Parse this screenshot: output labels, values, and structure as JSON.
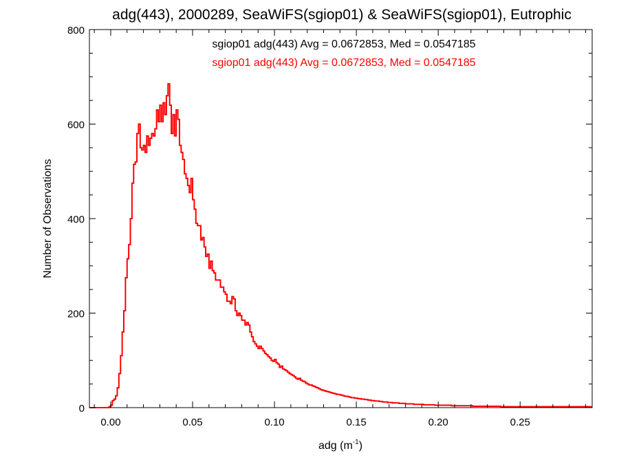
{
  "chart_data": {
    "type": "histogram",
    "title": "adg(443), 2000289, SeaWiFS(sgiop01) & SeaWiFS(sgiop01), Eutrophic",
    "xlabel": "adg (m",
    "xlabel_sup": "-1",
    "xlabel_suffix": ")",
    "ylabel": "Number of Observations",
    "xlim": [
      -0.013,
      0.294
    ],
    "ylim": [
      0,
      800
    ],
    "xticks": [
      0.0,
      0.05,
      0.1,
      0.15,
      0.2,
      0.25
    ],
    "xtick_labels": [
      "0.00",
      "0.05",
      "0.10",
      "0.15",
      "0.20",
      "0.25"
    ],
    "yticks": [
      0,
      200,
      400,
      600,
      800
    ],
    "ytick_labels": [
      "0",
      "200",
      "400",
      "600",
      "800"
    ],
    "grid": false,
    "annotations": [
      {
        "text": "sgiop01 adg(443) Avg = 0.0672853, Med = 0.0547185",
        "color": "#000000"
      },
      {
        "text": "sgiop01 adg(443) Avg = 0.0672853, Med = 0.0547185",
        "color": "#ff0000"
      }
    ],
    "series": [
      {
        "color": "#ff0000",
        "bin_width": 0.001,
        "bin_start": -0.013,
        "values": [
          0,
          0,
          0,
          0,
          0,
          0,
          0,
          0,
          0,
          0,
          0,
          0,
          2,
          5,
          15,
          18,
          25,
          42,
          72,
          110,
          160,
          205,
          275,
          315,
          345,
          400,
          475,
          515,
          520,
          580,
          600,
          550,
          545,
          555,
          540,
          575,
          555,
          570,
          580,
          575,
          590,
          630,
          605,
          640,
          605,
          645,
          620,
          660,
          685,
          640,
          580,
          620,
          575,
          630,
          610,
          555,
          540,
          525,
          495,
          485,
          470,
          455,
          485,
          440,
          420,
          390,
          385,
          385,
          355,
          360,
          340,
          320,
          325,
          295,
          310,
          290,
          285,
          270,
          270,
          270,
          255,
          255,
          245,
          240,
          225,
          225,
          220,
          235,
          230,
          205,
          195,
          200,
          195,
          185,
          185,
          175,
          180,
          175,
          160,
          150,
          140,
          135,
          130,
          125,
          130,
          125,
          120,
          115,
          112,
          108,
          105,
          100,
          98,
          102,
          95,
          92,
          85,
          88,
          82,
          80,
          78,
          75,
          72,
          70,
          68,
          65,
          62,
          60,
          62,
          58,
          56,
          55,
          52,
          50,
          48,
          48,
          46,
          45,
          43,
          42,
          40,
          38,
          37,
          36,
          35,
          34,
          33,
          32,
          31,
          30,
          29,
          28,
          28,
          27,
          26,
          25,
          24,
          24,
          23,
          22,
          21,
          21,
          20,
          20,
          19,
          19,
          18,
          18,
          17,
          17,
          16,
          16,
          15,
          15,
          14,
          14,
          14,
          13,
          13,
          12,
          12,
          12,
          11,
          11,
          11,
          10,
          10,
          10,
          10,
          9,
          9,
          9,
          9,
          8,
          8,
          8,
          8,
          8,
          7,
          7,
          7,
          7,
          7,
          7,
          6,
          6,
          6,
          6,
          6,
          6,
          6,
          5,
          5,
          5,
          5,
          5,
          5,
          5,
          5,
          5,
          5,
          4,
          4,
          4,
          4,
          4,
          4,
          4,
          4,
          4,
          4,
          4,
          4,
          4,
          3,
          3,
          3,
          3,
          3,
          3,
          3,
          3,
          3,
          3,
          3,
          3,
          3,
          3,
          3,
          3,
          3,
          2,
          2,
          2,
          2,
          2,
          2,
          2,
          2,
          2,
          2,
          2,
          2,
          2,
          2,
          2,
          2,
          2,
          2,
          2,
          2,
          2,
          2,
          2,
          2,
          2,
          2,
          2,
          2,
          2,
          2,
          2,
          2,
          2,
          2,
          2,
          2,
          2,
          2,
          2,
          2,
          2,
          2,
          2,
          2,
          2,
          2,
          2,
          2,
          2,
          2,
          2,
          2,
          2,
          2,
          2,
          2
        ]
      }
    ]
  }
}
